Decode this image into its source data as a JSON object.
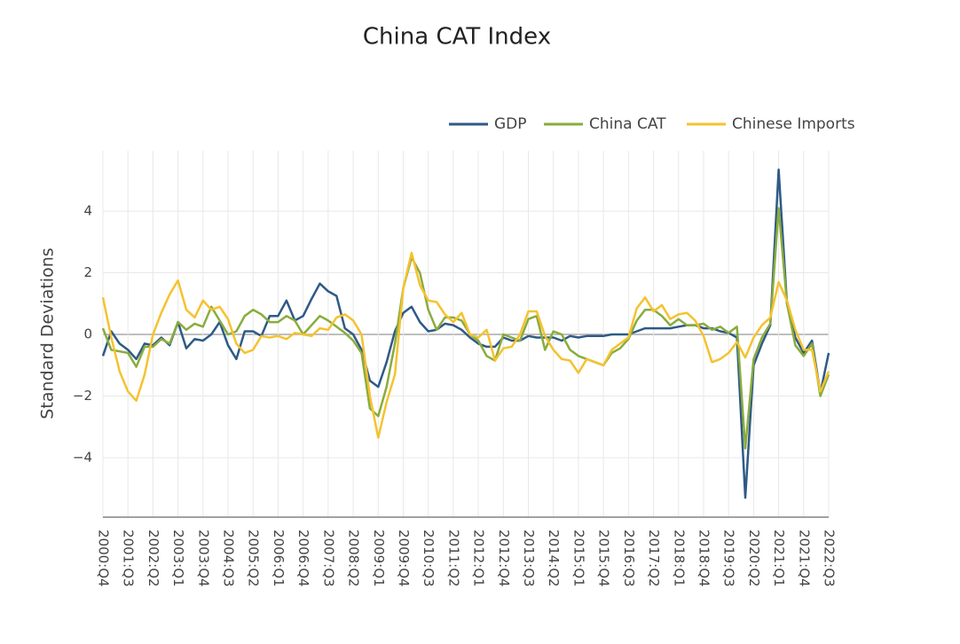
{
  "chart_data": {
    "type": "line",
    "title": "China CAT Index",
    "y_label": "Standard Deviations",
    "categories": [
      "2000:Q4",
      null,
      null,
      "2001:Q3",
      null,
      null,
      "2002:Q2",
      null,
      null,
      "2003:Q1",
      null,
      null,
      "2003:Q4",
      null,
      null,
      "2004:Q3",
      null,
      null,
      "2005:Q2",
      null,
      null,
      "2006:Q1",
      null,
      null,
      "2006:Q4",
      null,
      null,
      "2007:Q3",
      null,
      null,
      "2008:Q2",
      null,
      null,
      "2009:Q1",
      null,
      null,
      "2009:Q4",
      null,
      null,
      "2010:Q3",
      null,
      null,
      "2011:Q2",
      null,
      null,
      "2012:Q1",
      null,
      null,
      "2012:Q4",
      null,
      null,
      "2013:Q3",
      null,
      null,
      "2014:Q2",
      null,
      null,
      "2015:Q1",
      null,
      null,
      "2015:Q4",
      null,
      null,
      "2016:Q3",
      null,
      null,
      "2017:Q2",
      null,
      null,
      "2018:Q1",
      null,
      null,
      "2018:Q4",
      null,
      null,
      "2019:Q3",
      null,
      null,
      "2020:Q2",
      null,
      null,
      "2021:Q1",
      null,
      null,
      "2021:Q4",
      null,
      null,
      "2022:Q3"
    ],
    "series": [
      {
        "name": "GDP",
        "color": "#2e5a87",
        "values": [
          -0.7,
          0.1,
          -0.3,
          -0.5,
          -0.8,
          -0.3,
          -0.35,
          -0.1,
          -0.35,
          0.4,
          -0.45,
          -0.15,
          -0.2,
          0.0,
          0.4,
          -0.35,
          -0.8,
          0.1,
          0.1,
          -0.05,
          0.6,
          0.6,
          1.1,
          0.45,
          0.6,
          1.15,
          1.65,
          1.4,
          1.25,
          0.2,
          0.0,
          -0.5,
          -1.5,
          -1.7,
          -0.9,
          0.1,
          0.7,
          0.9,
          0.4,
          0.1,
          0.15,
          0.35,
          0.3,
          0.15,
          -0.1,
          -0.3,
          -0.4,
          -0.4,
          -0.1,
          -0.2,
          -0.2,
          -0.05,
          -0.1,
          -0.1,
          -0.1,
          -0.2,
          -0.05,
          -0.1,
          -0.05,
          -0.05,
          -0.05,
          0.0,
          0.0,
          0.0,
          0.1,
          0.2,
          0.2,
          0.2,
          0.2,
          0.25,
          0.3,
          0.3,
          0.2,
          0.2,
          0.1,
          0.05,
          -0.1,
          -5.3,
          -1.0,
          -0.3,
          0.3,
          5.35,
          1.0,
          -0.1,
          -0.6,
          -0.2,
          -1.9,
          -0.6
        ]
      },
      {
        "name": "China CAT",
        "color": "#8aac3c",
        "values": [
          0.2,
          -0.5,
          -0.55,
          -0.6,
          -1.05,
          -0.4,
          -0.4,
          -0.15,
          -0.3,
          0.4,
          0.15,
          0.35,
          0.25,
          0.9,
          0.45,
          0.0,
          0.1,
          0.6,
          0.8,
          0.65,
          0.4,
          0.4,
          0.6,
          0.45,
          0.0,
          0.3,
          0.6,
          0.45,
          0.25,
          0.05,
          -0.2,
          -0.6,
          -2.4,
          -2.65,
          -1.7,
          -0.3,
          1.5,
          2.5,
          2.0,
          0.8,
          0.15,
          0.55,
          0.55,
          0.45,
          0.0,
          -0.2,
          -0.7,
          -0.85,
          0.0,
          -0.1,
          -0.2,
          0.5,
          0.6,
          -0.5,
          0.1,
          0.0,
          -0.5,
          -0.7,
          -0.8,
          -0.9,
          -1.0,
          -0.6,
          -0.45,
          -0.15,
          0.45,
          0.8,
          0.8,
          0.6,
          0.3,
          0.5,
          0.3,
          0.3,
          0.35,
          0.15,
          0.25,
          0.05,
          0.25,
          -3.7,
          -0.8,
          -0.1,
          0.35,
          4.1,
          1.0,
          -0.35,
          -0.7,
          -0.3,
          -2.0,
          -1.3
        ]
      },
      {
        "name": "Chinese Imports",
        "color": "#f5c230",
        "values": [
          1.2,
          -0.1,
          -1.2,
          -1.85,
          -2.15,
          -1.3,
          0.0,
          0.7,
          1.3,
          1.75,
          0.8,
          0.55,
          1.1,
          0.8,
          0.9,
          0.5,
          -0.3,
          -0.6,
          -0.5,
          -0.05,
          -0.1,
          -0.05,
          -0.15,
          0.05,
          0.0,
          -0.05,
          0.2,
          0.15,
          0.55,
          0.65,
          0.45,
          0.0,
          -2.0,
          -3.35,
          -2.2,
          -1.3,
          1.5,
          2.65,
          1.6,
          1.1,
          1.05,
          0.65,
          0.4,
          0.7,
          0.0,
          -0.1,
          0.15,
          -0.85,
          -0.45,
          -0.4,
          0.0,
          0.75,
          0.75,
          -0.05,
          -0.5,
          -0.8,
          -0.85,
          -1.25,
          -0.8,
          -0.9,
          -1.0,
          -0.5,
          -0.3,
          -0.1,
          0.85,
          1.2,
          0.75,
          0.95,
          0.5,
          0.65,
          0.7,
          0.45,
          -0.05,
          -0.9,
          -0.8,
          -0.6,
          -0.25,
          -0.75,
          -0.1,
          0.3,
          0.55,
          1.7,
          1.1,
          0.15,
          -0.5,
          -0.5,
          -1.85,
          -1.2
        ]
      }
    ],
    "ylim": [
      -5.93,
      5.96
    ],
    "yticks": [
      {
        "value": -4,
        "label": "−4"
      },
      {
        "value": -2,
        "label": "−2"
      },
      0,
      2,
      4
    ],
    "grid": true,
    "legend": "top-right"
  }
}
